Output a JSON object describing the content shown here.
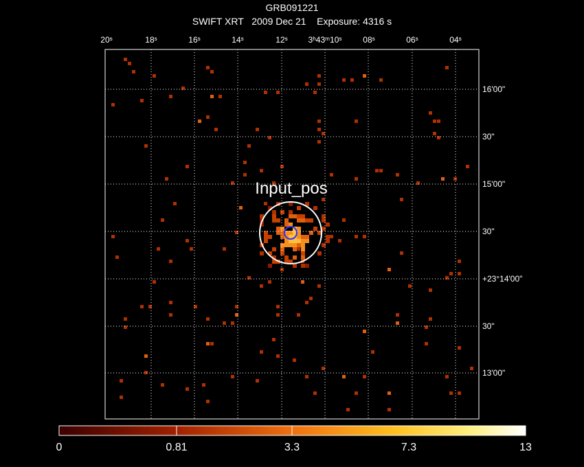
{
  "header": {
    "title": "GRB091221",
    "subtitle": "SWIFT XRT   2009 Dec 21    Exposure: 4316 s"
  },
  "image": {
    "ra_labels": [
      "20ˢ",
      "18ˢ",
      "16ˢ",
      "14ˢ",
      "12ˢ",
      "3ʰ43ᵐ10ˢ",
      "08ˢ",
      "06ˢ",
      "04ˢ"
    ],
    "dec_labels": [
      "16'00\"",
      "30\"",
      "15'00\"",
      "30\"",
      "+23°14'00\"",
      "30\"",
      "13'00\""
    ],
    "annotation": "Input_pos"
  },
  "colorbar": {
    "labels": [
      "0",
      "0.81",
      "3.3",
      "7.3",
      "13"
    ]
  }
}
